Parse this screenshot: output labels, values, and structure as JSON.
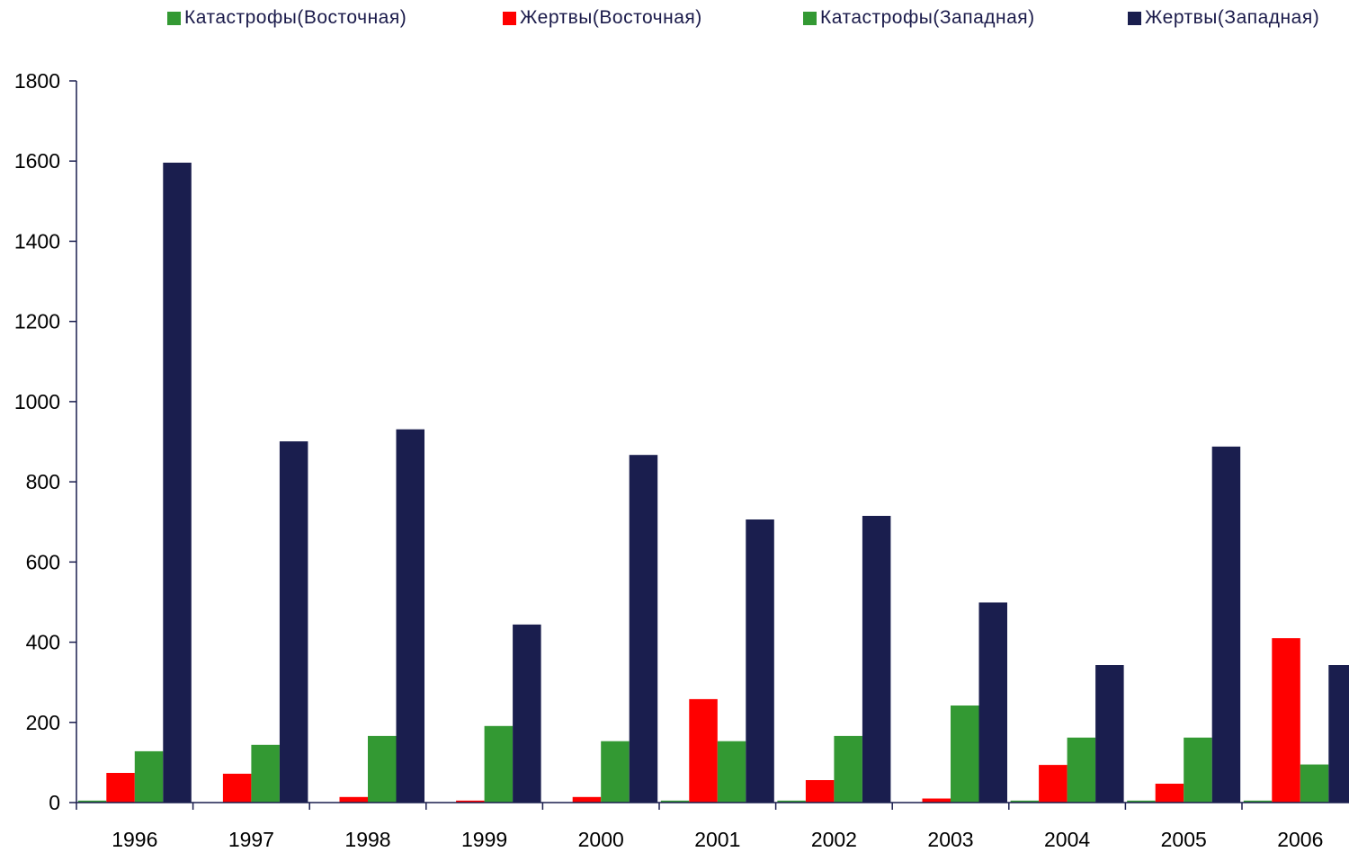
{
  "chart_data": {
    "type": "bar",
    "categories": [
      "1996",
      "1997",
      "1998",
      "1999",
      "2000",
      "2001",
      "2002",
      "2003",
      "2004",
      "2005",
      "2006"
    ],
    "series": [
      {
        "name": "Катастрофы(Восточная)",
        "color": "#339933",
        "values": [
          5,
          0,
          0,
          0,
          0,
          5,
          5,
          0,
          5,
          5,
          5
        ]
      },
      {
        "name": "Жертвы(Восточная)",
        "color": "#ff0000",
        "values": [
          74,
          72,
          14,
          5,
          14,
          258,
          56,
          10,
          94,
          47,
          410
        ]
      },
      {
        "name": "Катастрофы(Западная)",
        "color": "#339933",
        "values": [
          128,
          144,
          166,
          191,
          153,
          153,
          166,
          242,
          162,
          162,
          95
        ]
      },
      {
        "name": "Жертвы(Западная)",
        "color": "#1a1e4e",
        "values": [
          1596,
          901,
          931,
          444,
          867,
          706,
          715,
          499,
          343,
          888,
          343
        ]
      }
    ],
    "ylim": [
      0,
      1800
    ],
    "yticks": [
      0,
      200,
      400,
      600,
      800,
      1000,
      1200,
      1400,
      1600,
      1800
    ],
    "legend_position": "top",
    "grid": false
  }
}
